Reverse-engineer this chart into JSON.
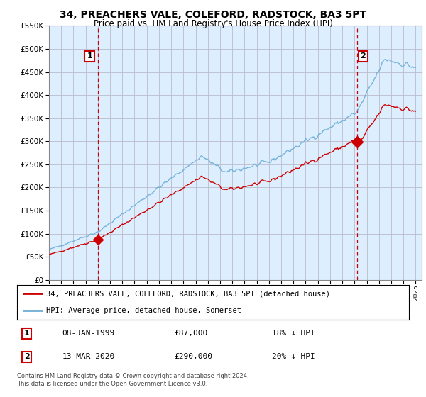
{
  "title": "34, PREACHERS VALE, COLEFORD, RADSTOCK, BA3 5PT",
  "subtitle": "Price paid vs. HM Land Registry's House Price Index (HPI)",
  "legend_entry1": "34, PREACHERS VALE, COLEFORD, RADSTOCK, BA3 5PT (detached house)",
  "legend_entry2": "HPI: Average price, detached house, Somerset",
  "annotation1_date": "08-JAN-1999",
  "annotation1_price": "£87,000",
  "annotation1_hpi": "18% ↓ HPI",
  "annotation2_date": "13-MAR-2020",
  "annotation2_price": "£290,000",
  "annotation2_hpi": "20% ↓ HPI",
  "footnote": "Contains HM Land Registry data © Crown copyright and database right 2024.\nThis data is licensed under the Open Government Licence v3.0.",
  "sale1_price": 87000,
  "sale2_price": 290000,
  "hpi_color": "#6baed6",
  "price_color": "#cc0000",
  "vline_color": "#cc0000",
  "ylim_min": 0,
  "ylim_max": 550000,
  "background_color": "#ffffff",
  "chart_bg_color": "#ddeeff",
  "grid_color": "#bbbbcc"
}
